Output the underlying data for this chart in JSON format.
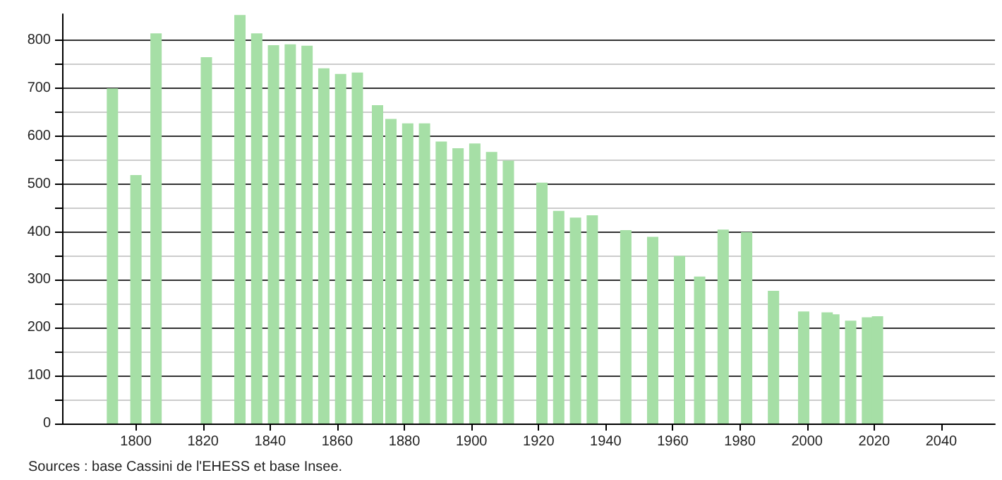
{
  "chart_data": {
    "type": "bar",
    "color": "#a6dfa6",
    "x": [
      1793,
      1800,
      1806,
      1821,
      1831,
      1836,
      1841,
      1846,
      1851,
      1856,
      1861,
      1866,
      1872,
      1876,
      1881,
      1886,
      1891,
      1896,
      1901,
      1906,
      1911,
      1921,
      1926,
      1931,
      1936,
      1946,
      1954,
      1962,
      1968,
      1975,
      1982,
      1990,
      1999,
      2006,
      2008,
      2013,
      2018,
      2021
    ],
    "values": [
      700,
      519,
      815,
      765,
      853,
      815,
      790,
      792,
      789,
      742,
      730,
      733,
      665,
      636,
      627,
      627,
      589,
      575,
      585,
      567,
      549,
      503,
      444,
      430,
      435,
      404,
      390,
      350,
      307,
      405,
      400,
      277,
      234,
      232,
      228,
      215,
      222,
      224
    ],
    "xlim": [
      1778,
      2056
    ],
    "xticks": [
      1800,
      1820,
      1840,
      1860,
      1880,
      1900,
      1920,
      1940,
      1960,
      1980,
      2000,
      2020,
      2040
    ],
    "ylim": [
      0,
      855
    ],
    "yticks": [
      0,
      {
        "value": 50,
        "label": null
      },
      100,
      {
        "value": 150,
        "label": null
      },
      200,
      {
        "value": 250,
        "label": null
      },
      300,
      {
        "value": 350,
        "label": null
      },
      400,
      {
        "value": 450,
        "label": null
      },
      500,
      {
        "value": 550,
        "label": null
      },
      600,
      {
        "value": 650,
        "label": null
      },
      700,
      {
        "value": 750,
        "label": null
      },
      800
    ],
    "grid": "y",
    "annotations": [
      "Sources : base Cassini de l'EHESS et base Insee."
    ]
  }
}
